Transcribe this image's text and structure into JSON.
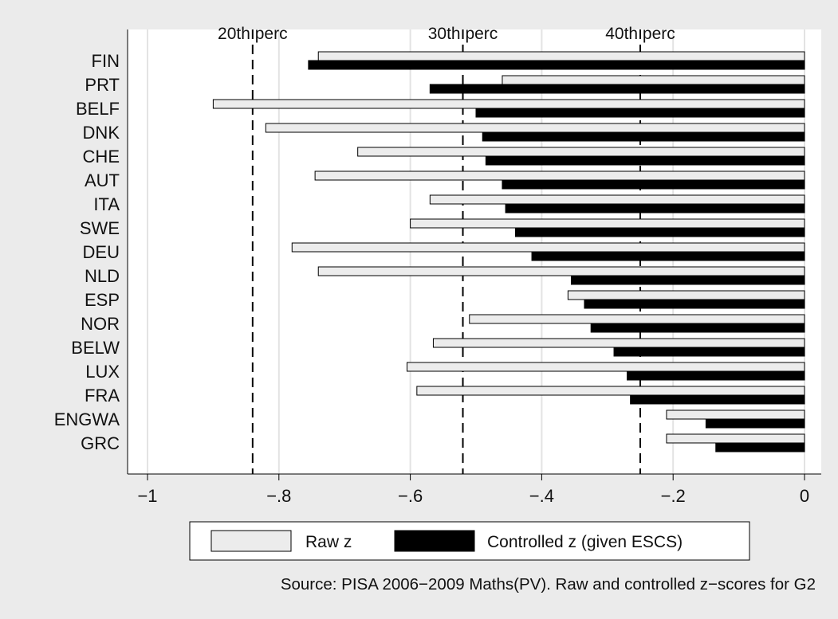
{
  "chart_data": {
    "type": "bar",
    "orientation": "horizontal",
    "categories": [
      "FIN",
      "PRT",
      "BELF",
      "DNK",
      "CHE",
      "AUT",
      "ITA",
      "SWE",
      "DEU",
      "NLD",
      "ESP",
      "NOR",
      "BELW",
      "LUX",
      "FRA",
      "ENGWA",
      "GRC"
    ],
    "series": [
      {
        "name": "Raw z",
        "color": "#ececec",
        "values": [
          -0.74,
          -0.46,
          -0.9,
          -0.82,
          -0.68,
          -0.745,
          -0.57,
          -0.6,
          -0.78,
          -0.74,
          -0.36,
          -0.51,
          -0.565,
          -0.605,
          -0.59,
          -0.21,
          -0.21
        ]
      },
      {
        "name": "Controlled z (given ESCS)",
        "color": "#000000",
        "values": [
          -0.755,
          -0.57,
          -0.5,
          -0.49,
          -0.485,
          -0.46,
          -0.455,
          -0.44,
          -0.415,
          -0.355,
          -0.335,
          -0.325,
          -0.29,
          -0.27,
          -0.265,
          -0.15,
          -0.135
        ]
      }
    ],
    "reference_lines": [
      {
        "label": "20th perc",
        "value": -0.84
      },
      {
        "label": "30th perc",
        "value": -0.52
      },
      {
        "label": "40th perc",
        "value": -0.25
      }
    ],
    "x_ticks": [
      -1,
      -0.8,
      -0.6,
      -0.4,
      -0.2,
      0
    ],
    "x_tick_labels": [
      "−1",
      "−.8",
      "−.6",
      "−.4",
      "−.2",
      "0"
    ],
    "xlim": [
      -1.04,
      0.03
    ],
    "grid": true,
    "legend_position": "bottom",
    "note": "Source: PISA 2006−2009 Maths(PV). Raw and controlled z−scores for G2"
  }
}
